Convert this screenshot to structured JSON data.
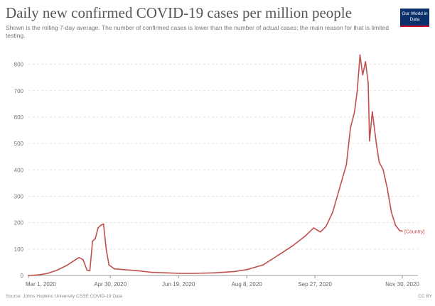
{
  "header": {
    "title": "Daily new confirmed COVID-19 cases per million people",
    "subtitle": "Shown is the rolling 7-day average. The number of confirmed cases is lower than the number of actual cases; the main reason for that is limited testing."
  },
  "logo": {
    "text": "Our World in Data",
    "bg_color": "#0a2f6b",
    "accent_color": "#c8102e"
  },
  "footer": {
    "source": "Source: Johns Hopkins University CSSE COVID-19 Data",
    "license": "CC BY"
  },
  "chart_data": {
    "type": "line",
    "title": "Daily new confirmed COVID-19 cases per million people",
    "xlabel": "",
    "ylabel": "",
    "ylim": [
      0,
      850
    ],
    "yticks": [
      0,
      100,
      200,
      300,
      400,
      500,
      600,
      700,
      800
    ],
    "xtick_labels": [
      "Mar 1, 2020",
      "Apr 30, 2020",
      "Jun 19, 2020",
      "Aug 8, 2020",
      "Sep 27, 2020",
      "Nov 30, 2020"
    ],
    "xtick_dates": [
      "2020-03-01",
      "2020-04-30",
      "2020-06-19",
      "2020-08-08",
      "2020-09-27",
      "2020-11-30"
    ],
    "grid": true,
    "line_color": "#c0504d",
    "series": [
      {
        "end_label": "[Country]",
        "points": [
          [
            "2020-03-01",
            0
          ],
          [
            "2020-03-08",
            2
          ],
          [
            "2020-03-15",
            8
          ],
          [
            "2020-03-22",
            20
          ],
          [
            "2020-03-29",
            38
          ],
          [
            "2020-04-04",
            58
          ],
          [
            "2020-04-07",
            68
          ],
          [
            "2020-04-10",
            60
          ],
          [
            "2020-04-13",
            20
          ],
          [
            "2020-04-15",
            18
          ],
          [
            "2020-04-17",
            130
          ],
          [
            "2020-04-19",
            140
          ],
          [
            "2020-04-21",
            180
          ],
          [
            "2020-04-23",
            190
          ],
          [
            "2020-04-25",
            195
          ],
          [
            "2020-04-27",
            100
          ],
          [
            "2020-04-29",
            40
          ],
          [
            "2020-05-03",
            25
          ],
          [
            "2020-05-10",
            22
          ],
          [
            "2020-05-20",
            18
          ],
          [
            "2020-05-30",
            12
          ],
          [
            "2020-06-10",
            10
          ],
          [
            "2020-06-20",
            8
          ],
          [
            "2020-07-01",
            8
          ],
          [
            "2020-07-15",
            10
          ],
          [
            "2020-07-30",
            15
          ],
          [
            "2020-08-08",
            22
          ],
          [
            "2020-08-20",
            40
          ],
          [
            "2020-09-01",
            80
          ],
          [
            "2020-09-10",
            110
          ],
          [
            "2020-09-20",
            150
          ],
          [
            "2020-09-26",
            180
          ],
          [
            "2020-10-01",
            165
          ],
          [
            "2020-10-05",
            185
          ],
          [
            "2020-10-10",
            240
          ],
          [
            "2020-10-15",
            330
          ],
          [
            "2020-10-20",
            420
          ],
          [
            "2020-10-23",
            560
          ],
          [
            "2020-10-26",
            620
          ],
          [
            "2020-10-28",
            700
          ],
          [
            "2020-10-30",
            835
          ],
          [
            "2020-11-01",
            760
          ],
          [
            "2020-11-03",
            810
          ],
          [
            "2020-11-05",
            730
          ],
          [
            "2020-11-06",
            510
          ],
          [
            "2020-11-08",
            620
          ],
          [
            "2020-11-11",
            500
          ],
          [
            "2020-11-13",
            430
          ],
          [
            "2020-11-16",
            400
          ],
          [
            "2020-11-19",
            330
          ],
          [
            "2020-11-22",
            240
          ],
          [
            "2020-11-25",
            190
          ],
          [
            "2020-11-28",
            170
          ],
          [
            "2020-11-30",
            168
          ]
        ]
      }
    ]
  }
}
